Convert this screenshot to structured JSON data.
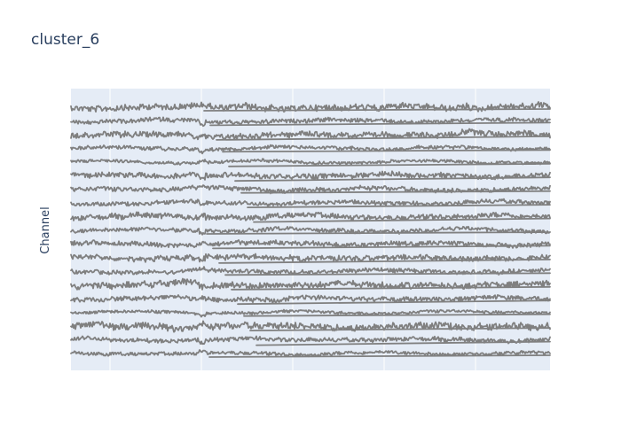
{
  "chart_data": {
    "type": "line",
    "title": "cluster_6",
    "xlabel": "",
    "ylabel": "Channel",
    "xlim": [
      0,
      1
    ],
    "grid": true,
    "legend": "none",
    "tick_labels_visible": false,
    "line_color": "#808080",
    "plot_background": "#e5ecf6",
    "grid_color": "#ffffff",
    "title_color": "#2a3f5f",
    "n_channels": 19,
    "series": [
      {
        "channel": 1,
        "noise": 0.55
      },
      {
        "channel": 2,
        "noise": 0.35
      },
      {
        "channel": 3,
        "noise": 0.5
      },
      {
        "channel": 4,
        "noise": 0.3
      },
      {
        "channel": 5,
        "noise": 0.25
      },
      {
        "channel": 6,
        "noise": 0.45
      },
      {
        "channel": 7,
        "noise": 0.4
      },
      {
        "channel": 8,
        "noise": 0.35
      },
      {
        "channel": 9,
        "noise": 0.45
      },
      {
        "channel": 10,
        "noise": 0.35
      },
      {
        "channel": 11,
        "noise": 0.4
      },
      {
        "channel": 12,
        "noise": 0.45
      },
      {
        "channel": 13,
        "noise": 0.35
      },
      {
        "channel": 14,
        "noise": 0.55
      },
      {
        "channel": 15,
        "noise": 0.4
      },
      {
        "channel": 16,
        "noise": 0.25
      },
      {
        "channel": 17,
        "noise": 0.6
      },
      {
        "channel": 18,
        "noise": 0.35
      },
      {
        "channel": 19,
        "noise": 0.3
      }
    ]
  }
}
